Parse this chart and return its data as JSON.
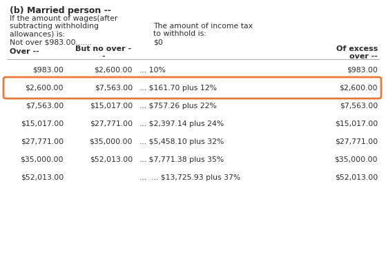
{
  "title": "(b) Married person --",
  "header_left_line1": "If the amount of wages(after",
  "header_left_line2": "subtracting withholding",
  "header_left_line3": "allowances) is:",
  "header_right_line1": "The amount of income tax",
  "header_right_line2": "to withhold is:",
  "not_over_label": "Not over $983.00.......",
  "not_over_value": "$0",
  "rows": [
    [
      "$983.00",
      "$2,600.00",
      "... 10%",
      "$983.00"
    ],
    [
      "$2,600.00",
      "$7,563.00",
      "... $161.70 plus 12%",
      "$2,600.00"
    ],
    [
      "$7,563.00",
      "$15,017.00",
      "... $757.26 plus 22%",
      "$7,563.00"
    ],
    [
      "$15,017.00",
      "$27,771.00",
      "... $2,397.14 plus 24%",
      "$15,017.00"
    ],
    [
      "$27,771.00",
      "$35,000.00",
      "... $5,458.10 plus 32%",
      "$27,771.00"
    ],
    [
      "$35,000.00",
      "$52,013.00",
      "... $7,771.38 plus 35%",
      "$35,000.00"
    ],
    [
      "$52,013.00",
      "",
      "...  ... $13,725.93 plus 37%",
      "$52,013.00"
    ]
  ],
  "highlighted_row": 1,
  "highlight_color": "#E8793A",
  "bg_color": "#ffffff",
  "text_color": "#2b2b2b"
}
